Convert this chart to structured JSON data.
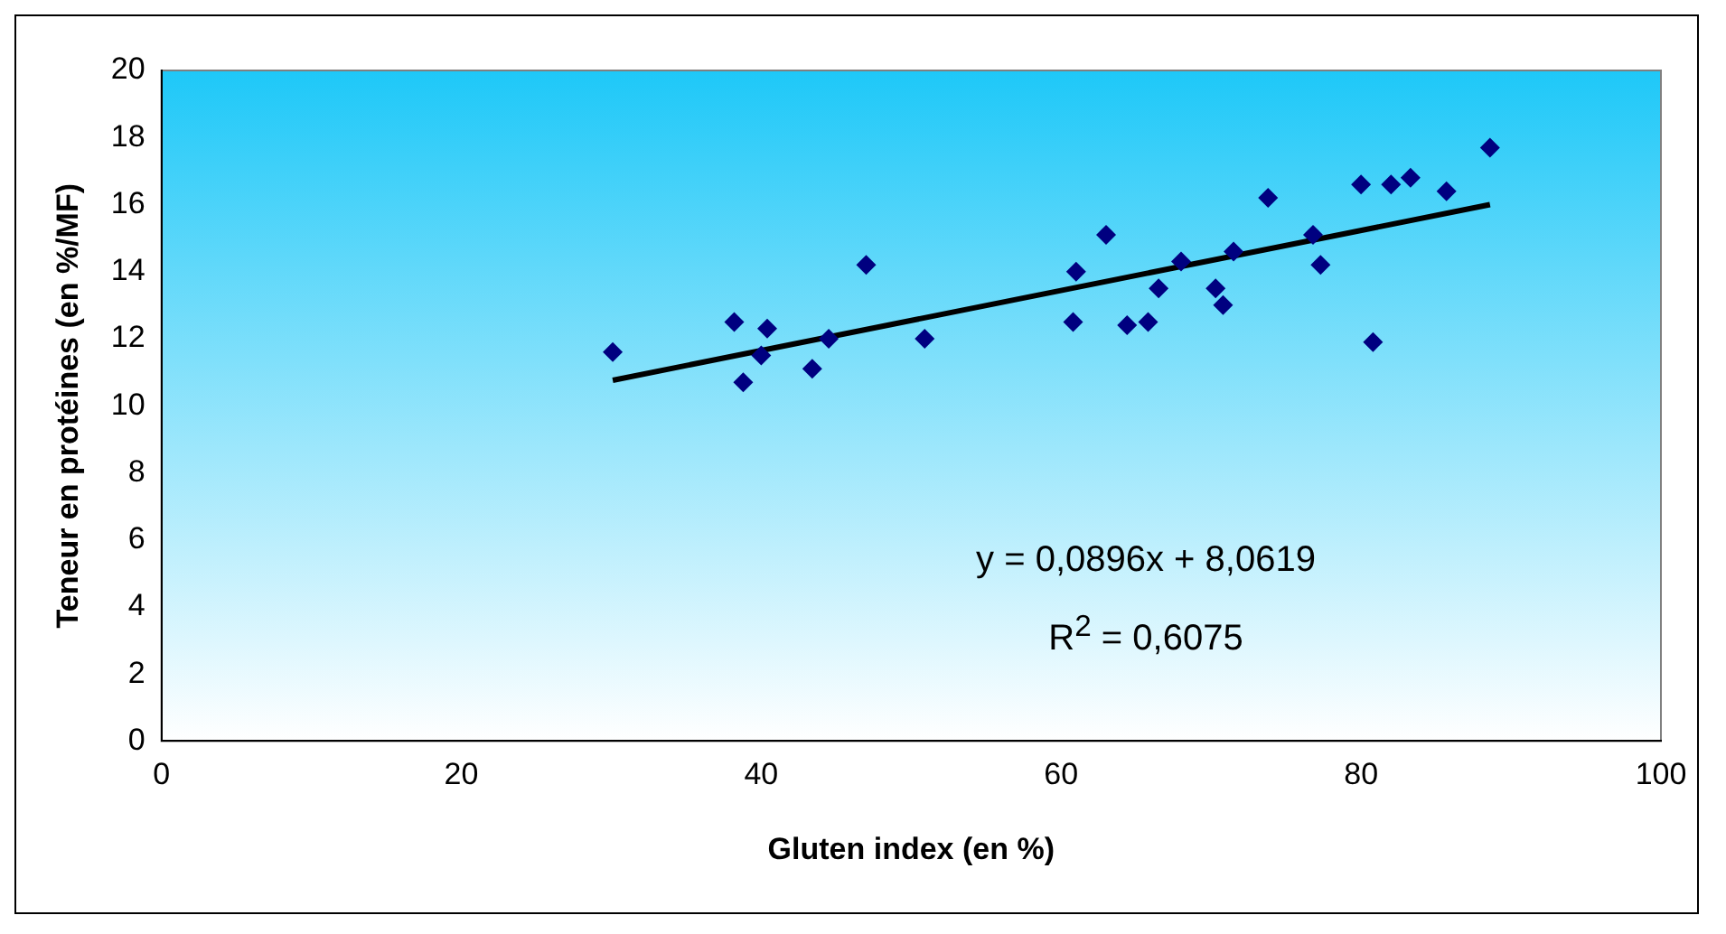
{
  "chart_data": {
    "type": "scatter",
    "xlabel": "Gluten index (en %)",
    "ylabel": "Teneur en protéines (en %/MF)",
    "series": [
      {
        "type": "scatter",
        "color": "#000080",
        "marker": "diamond",
        "x": [
          30.1,
          38.2,
          38.8,
          40.0,
          40.4,
          43.4,
          44.5,
          47.0,
          50.9,
          60.8,
          61.0,
          63.0,
          64.4,
          65.8,
          66.5,
          68.0,
          70.3,
          70.8,
          71.5,
          73.8,
          76.8,
          77.3,
          80.0,
          80.8,
          82.0,
          83.3,
          85.7,
          88.6
        ],
        "values": [
          11.6,
          12.5,
          10.7,
          11.5,
          12.3,
          11.1,
          12.0,
          14.2,
          12.0,
          12.5,
          14.0,
          15.1,
          12.4,
          12.5,
          13.5,
          14.3,
          13.5,
          13.0,
          14.6,
          16.2,
          15.1,
          14.2,
          16.6,
          11.9,
          16.6,
          16.8,
          16.4,
          17.7
        ]
      },
      {
        "type": "line",
        "color": "#000000",
        "marker": "none",
        "x": [
          30.1,
          88.6
        ],
        "values": [
          10.76,
          16.0
        ]
      }
    ],
    "xlim": [
      0,
      100
    ],
    "xticks": [
      0,
      20,
      40,
      60,
      80,
      100
    ],
    "ylim": [
      0,
      20
    ],
    "yticks": [
      0,
      2,
      4,
      6,
      8,
      10,
      12,
      14,
      16,
      18,
      20
    ],
    "grid": false,
    "legend": false,
    "annotations": [
      "y = 0,0896x + 8,0619",
      "R$^{2}$ = 0,6075"
    ]
  }
}
